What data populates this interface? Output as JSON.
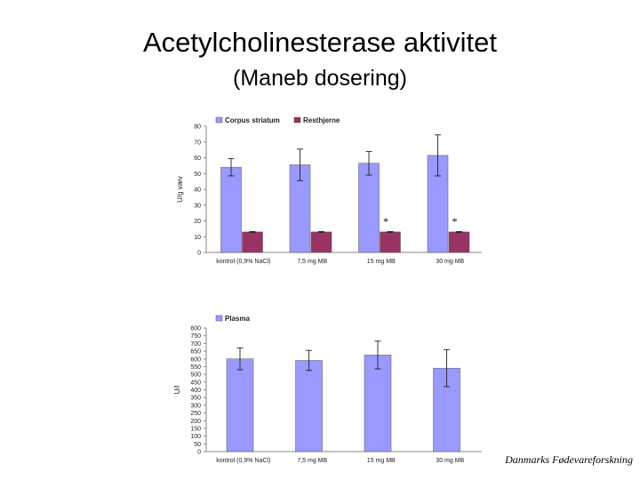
{
  "title": "Acetylcholinesterase aktivitet",
  "subtitle": "(Maneb dosering)",
  "footer": "Danmarks Fødevareforskning",
  "chart_data": [
    {
      "type": "bar",
      "ylabel": "U/g væv",
      "ylim": [
        0,
        80
      ],
      "yticks": [
        0,
        10,
        20,
        30,
        40,
        50,
        60,
        70,
        80
      ],
      "categories": [
        "kontrol (0,9% NaCl)",
        "7,5 mg MB",
        "15 mg MB",
        "30 mg MB"
      ],
      "legend_position": "top-left",
      "series": [
        {
          "name": "Corpus striatum",
          "color": "#9999ff",
          "values": [
            54,
            55.5,
            56.5,
            61.5
          ],
          "errors": [
            5.5,
            10,
            7.5,
            13
          ]
        },
        {
          "name": "Resthjerne",
          "color": "#993366",
          "values": [
            13,
            13,
            13,
            13
          ],
          "errors": [
            0.3,
            0.3,
            0.3,
            0.3
          ]
        }
      ],
      "annotations": [
        {
          "text": "*",
          "category_index": 2
        },
        {
          "text": "*",
          "category_index": 3
        }
      ]
    },
    {
      "type": "bar",
      "ylabel": "U/l",
      "ylim": [
        0,
        800
      ],
      "yticks": [
        0,
        50,
        100,
        150,
        200,
        250,
        300,
        350,
        400,
        450,
        500,
        550,
        600,
        650,
        700,
        750,
        800
      ],
      "categories": [
        "kontrol (0,9% NaCl)",
        "7,5 mg MB",
        "15 mg MB",
        "30 mg MB"
      ],
      "legend_position": "top-left",
      "series": [
        {
          "name": "Plasma",
          "color": "#9999ff",
          "values": [
            600,
            590,
            625,
            540
          ],
          "errors": [
            70,
            65,
            90,
            120
          ]
        }
      ]
    }
  ]
}
